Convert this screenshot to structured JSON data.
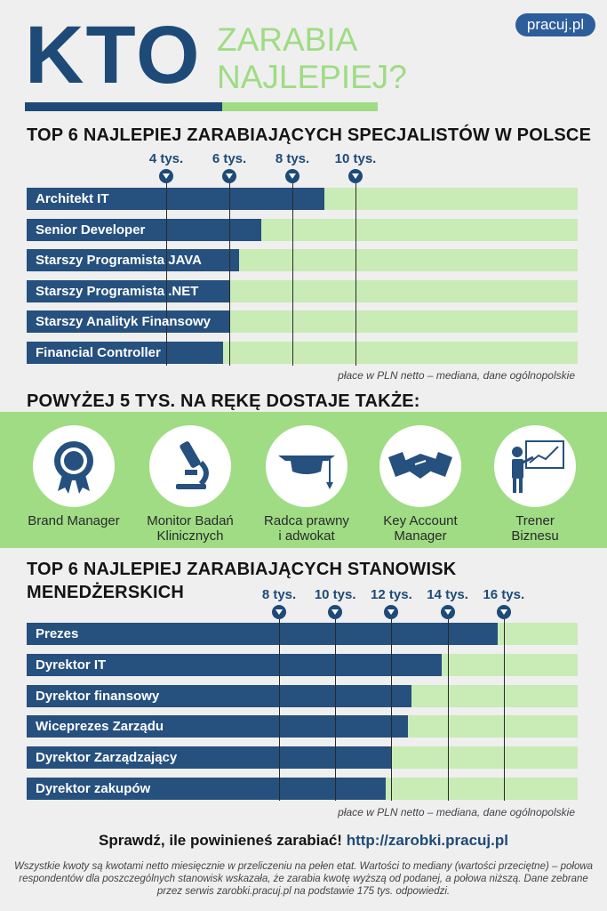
{
  "header": {
    "title_big": "KTO",
    "title_line1": "ZARABIA",
    "title_line2": "NAJLEPIEJ?",
    "logo": "pracuj.pl"
  },
  "section1": {
    "heading": "TOP 6 NAJLEPIEJ ZARABIAJĄCYCH SPECJALISTÓW W POLSCE",
    "note": "płace w PLN netto – mediana, dane ogólnopolskie"
  },
  "section2": {
    "heading": "POWYŻEJ 5 TYS. NA RĘKĘ DOSTAJE TAKŻE:",
    "professions": [
      {
        "line1": "Brand Manager",
        "line2": "",
        "icon": "medal-icon"
      },
      {
        "line1": "Monitor Badań",
        "line2": "Klinicznych",
        "icon": "microscope-icon"
      },
      {
        "line1": "Radca prawny",
        "line2": "i adwokat",
        "icon": "graduation-cap-icon"
      },
      {
        "line1": "Key Account",
        "line2": "Manager",
        "icon": "handshake-icon"
      },
      {
        "line1": "Trener",
        "line2": "Biznesu",
        "icon": "presentation-icon"
      }
    ]
  },
  "section3": {
    "heading_line1": "TOP 6 NAJLEPIEJ ZARABIAJĄCYCH STANOWISK",
    "heading_line2": "MENEDŻERSKICH",
    "note": "płace w PLN netto – mediana, dane ogólnopolskie"
  },
  "footer": {
    "cta_text": "Sprawdź, ile powinieneś zarabiać!",
    "cta_url": "http://zarobki.pracuj.pl",
    "disclaimer": "Wszystkie kwoty są kwotami netto miesięcznie w przeliczeniu na pełen etat. Wartości to mediany (wartości przeciętne) – połowa respondentów dla poszczególnych stanowisk wskazała, że zarabia kwotę wyższą od podanej, a połowa niższą. Dane zebrane przez serwis zarobki.pracuj.pl na podstawie 175 tys. odpowiedzi."
  },
  "colors": {
    "dark_blue": "#1e4a78",
    "bar_blue": "#26507e",
    "light_green": "#9fdc84",
    "track_green": "#c9ebb6"
  },
  "chart_data": [
    {
      "type": "bar",
      "orientation": "horizontal",
      "title": "TOP 6 NAJLEPIEJ ZARABIAJĄCYCH SPECJALISTÓW W POLSCE",
      "categories": [
        "Architekt IT",
        "Senior Developer",
        "Starszy Programista JAVA",
        "Starszy Programista .NET",
        "Starszy Analityk Finansowy",
        "Financial Controller"
      ],
      "values": [
        9.0,
        7.0,
        6.3,
        6.0,
        6.0,
        5.8
      ],
      "ticks": [
        4,
        6,
        8,
        10
      ],
      "tick_labels": [
        "4 tys.",
        "6 tys.",
        "8 tys.",
        "10 tys."
      ],
      "unit": "tys. PLN"
    },
    {
      "type": "bar",
      "orientation": "horizontal",
      "title": "TOP 6 NAJLEPIEJ ZARABIAJĄCYCH STANOWISK MENEDŻERSKICH",
      "categories": [
        "Prezes",
        "Dyrektor IT",
        "Dyrektor finansowy",
        "Wiceprezes Zarządu",
        "Dyrektor Zarządzający",
        "Dyrektor zakupów"
      ],
      "values": [
        15.8,
        13.8,
        12.7,
        12.6,
        12.0,
        11.8
      ],
      "ticks": [
        8,
        10,
        12,
        14,
        16
      ],
      "tick_labels": [
        "8 tys.",
        "10 tys.",
        "12 tys.",
        "14 tys.",
        "16 tys."
      ],
      "unit": "tys. PLN"
    }
  ]
}
